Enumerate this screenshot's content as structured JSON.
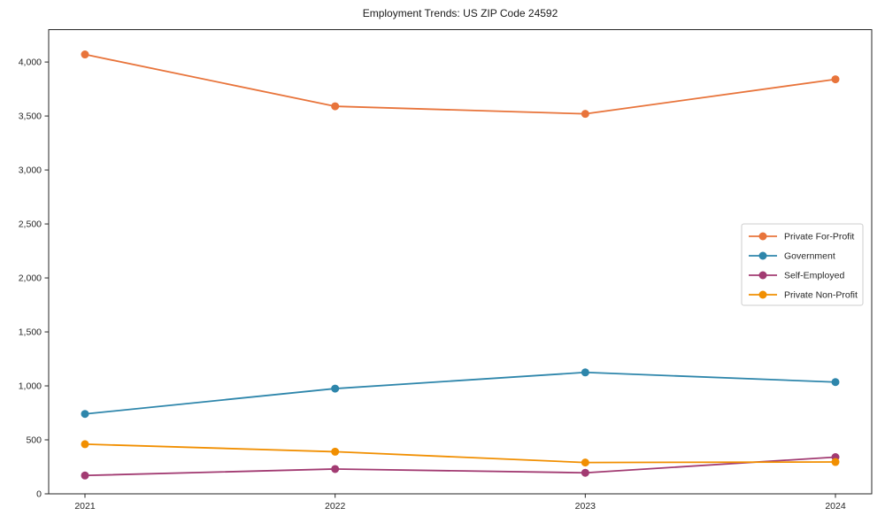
{
  "chart_data": {
    "type": "line",
    "title": "Employment Trends: US ZIP Code 24592",
    "categories": [
      "2021",
      "2022",
      "2023",
      "2024"
    ],
    "series": [
      {
        "name": "Private For-Profit",
        "color": "#E8743B",
        "values": [
          4070,
          3590,
          3520,
          3840
        ]
      },
      {
        "name": "Government",
        "color": "#2E86AB",
        "values": [
          740,
          975,
          1125,
          1035
        ]
      },
      {
        "name": "Self-Employed",
        "color": "#A23B72",
        "values": [
          170,
          230,
          195,
          340
        ]
      },
      {
        "name": "Private Non-Profit",
        "color": "#F18F01",
        "values": [
          460,
          390,
          290,
          295
        ]
      }
    ],
    "xlabel": "",
    "ylabel": "",
    "ylim": [
      0,
      4300
    ],
    "yticks": [
      0,
      500,
      1000,
      1500,
      2000,
      2500,
      3000,
      3500,
      4000
    ],
    "grid": false,
    "legend_position": "center-right",
    "marker": "circle",
    "axis_color": "#262626",
    "legend_border_color": "#cccccc"
  }
}
